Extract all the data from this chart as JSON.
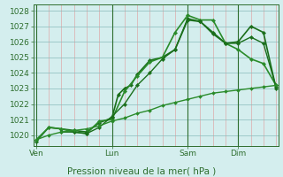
{
  "xlabel": "Pression niveau de la mer( hPa )",
  "bg_color": "#d4eeee",
  "ylim": [
    1019.3,
    1028.4
  ],
  "yticks": [
    1020,
    1021,
    1022,
    1023,
    1024,
    1025,
    1026,
    1027,
    1028
  ],
  "xtick_labels": [
    "Ven",
    "Lun",
    "Sam",
    "Dim"
  ],
  "xtick_positions": [
    0,
    3,
    6,
    8
  ],
  "xlim": [
    -0.1,
    9.6
  ],
  "lines": [
    {
      "x": [
        0,
        0.5,
        1.0,
        1.5,
        2.0,
        2.5,
        3.0,
        3.25,
        3.5,
        3.75,
        4.0,
        4.5,
        5.0,
        5.5,
        6.0,
        6.5,
        7.0,
        7.5,
        8.0,
        8.5,
        9.0,
        9.5
      ],
      "y": [
        1019.6,
        1020.5,
        1020.4,
        1020.3,
        1020.2,
        1020.8,
        1021.1,
        1022.6,
        1023.0,
        1023.2,
        1023.9,
        1024.8,
        1025.0,
        1025.5,
        1027.4,
        1027.3,
        1026.6,
        1025.9,
        1026.0,
        1027.0,
        1026.6,
        1023.0
      ],
      "color": "#1a6e1a",
      "lw": 1.2,
      "marker": "D",
      "ms": 2.2,
      "linestyle": "-"
    },
    {
      "x": [
        0,
        0.5,
        1.0,
        1.5,
        2.0,
        2.5,
        3.0,
        3.5,
        4.0,
        4.5,
        5.0,
        5.5,
        6.0,
        6.5,
        7.0,
        7.5,
        8.0,
        8.5,
        9.0,
        9.5
      ],
      "y": [
        1019.7,
        1020.5,
        1020.4,
        1020.2,
        1020.1,
        1020.9,
        1021.0,
        1022.8,
        1023.8,
        1024.7,
        1025.0,
        1026.6,
        1027.7,
        1027.4,
        1027.4,
        1025.9,
        1025.5,
        1024.9,
        1024.6,
        1023.2
      ],
      "color": "#2a8b2a",
      "lw": 1.2,
      "marker": "D",
      "ms": 2.2,
      "linestyle": "-"
    },
    {
      "x": [
        1.0,
        1.5,
        2.0,
        2.5,
        3.0,
        3.5,
        4.0,
        4.5,
        5.0,
        5.5,
        6.0,
        6.5,
        7.0,
        7.5,
        8.0,
        8.5,
        9.0,
        9.5
      ],
      "y": [
        1020.2,
        1020.2,
        1020.1,
        1020.5,
        1021.2,
        1022.0,
        1023.2,
        1024.0,
        1024.9,
        1025.5,
        1027.5,
        1027.3,
        1026.5,
        1025.9,
        1025.9,
        1026.3,
        1025.9,
        1023.1
      ],
      "color": "#1a6e1a",
      "lw": 1.0,
      "marker": "D",
      "ms": 2.2,
      "linestyle": "-"
    },
    {
      "x": [
        0,
        0.5,
        1.0,
        1.5,
        2.0,
        2.5,
        3.0,
        3.5,
        4.0,
        4.5,
        5.0,
        5.5,
        6.0,
        6.5,
        7.0,
        7.5,
        8.0,
        8.5,
        9.0,
        9.5
      ],
      "y": [
        1019.7,
        1020.0,
        1020.2,
        1020.3,
        1020.4,
        1020.6,
        1020.9,
        1021.1,
        1021.4,
        1021.6,
        1021.9,
        1022.1,
        1022.3,
        1022.5,
        1022.7,
        1022.8,
        1022.9,
        1023.0,
        1023.1,
        1023.2
      ],
      "color": "#2a8b2a",
      "lw": 1.0,
      "marker": "D",
      "ms": 2.0,
      "linestyle": "-"
    }
  ],
  "vline_positions": [
    0,
    3,
    6,
    8
  ],
  "vline_color": "#2e6e2e",
  "minor_vline_positions": [
    0.5,
    1.0,
    1.5,
    2.0,
    2.5,
    3.5,
    4.0,
    4.5,
    5.0,
    5.5,
    6.5,
    7.0,
    7.5,
    8.5,
    9.0,
    9.5
  ],
  "minor_vline_color": "#ddaaaa",
  "hline_color": "#88bbbb",
  "tick_label_color": "#2e6e2e",
  "tick_label_fontsize": 6.5,
  "xlabel_fontsize": 7.5
}
